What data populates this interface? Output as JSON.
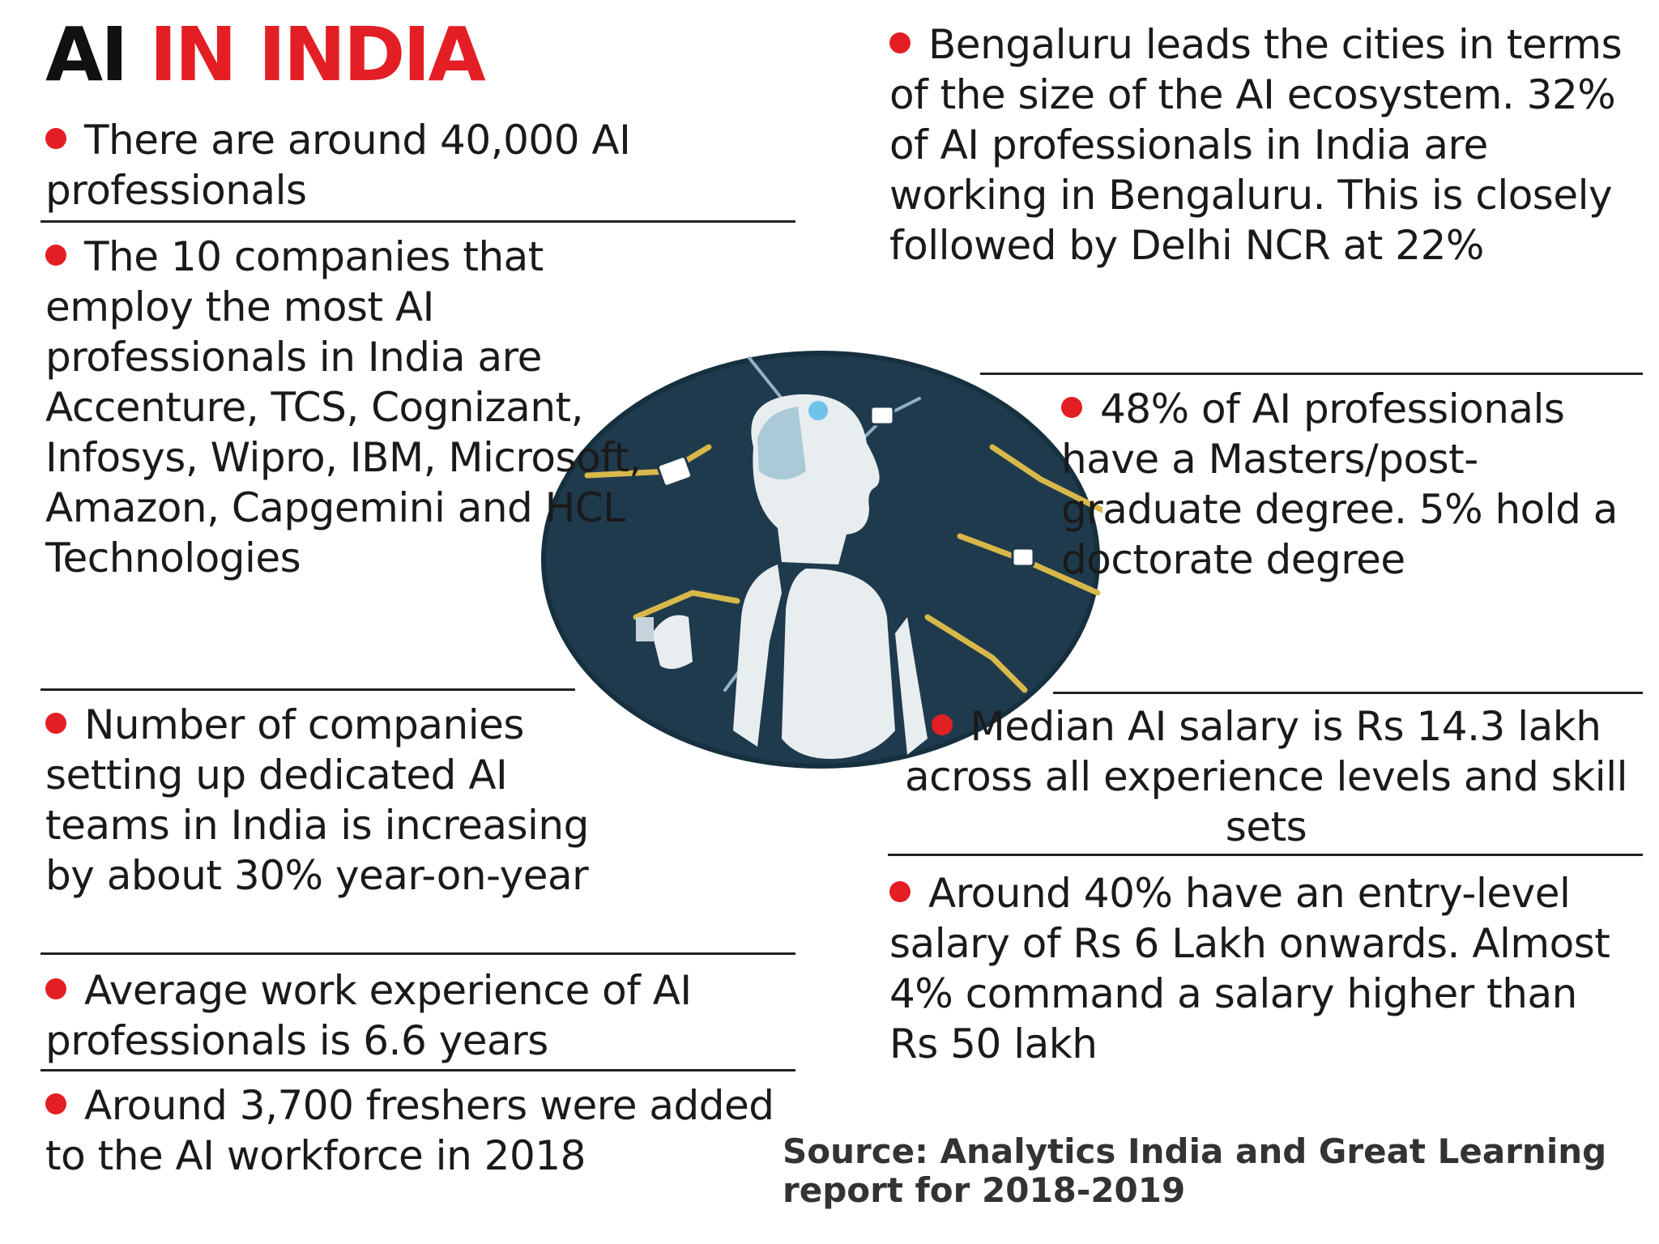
{
  "title": {
    "part1": "AI",
    "part2": "IN INDIA"
  },
  "left_items": [
    "There are around 40,000 AI professionals",
    "The 10 companies that employ the most AI professionals in India are Accenture, TCS, Cognizant, Infosys, Wipro, IBM, Microsoft, Amazon, Capgemini and HCL Technologies",
    "Number of companies setting up dedicated AI teams in India is increasing by about 30% year-on-year",
    "Average work experience of AI professionals is 6.6 years",
    "Around 3,700 freshers were added to the AI workforce in 2018"
  ],
  "right_items": [
    "Bengaluru leads the cities in terms of the size of the AI ecosystem. 32% of AI professionals in India are working in Bengaluru. This is closely followed by Delhi NCR at 22%",
    "48% of AI professionals have a Masters/post-graduate degree. 5% hold a doctorate degree",
    "Median AI salary is Rs 14.3 lakh across all experience levels and skill sets",
    "Around 40% have an entry-level salary of Rs 6 Lakh onwards. Almost 4% command a salary higher than Rs 50 lakh"
  ],
  "source": "Source: Analytics India and Great Learning report for 2018-2019",
  "colors": {
    "accent": "#e31e24",
    "circle": "#1f3a4d",
    "wire": "#d9b84a"
  }
}
